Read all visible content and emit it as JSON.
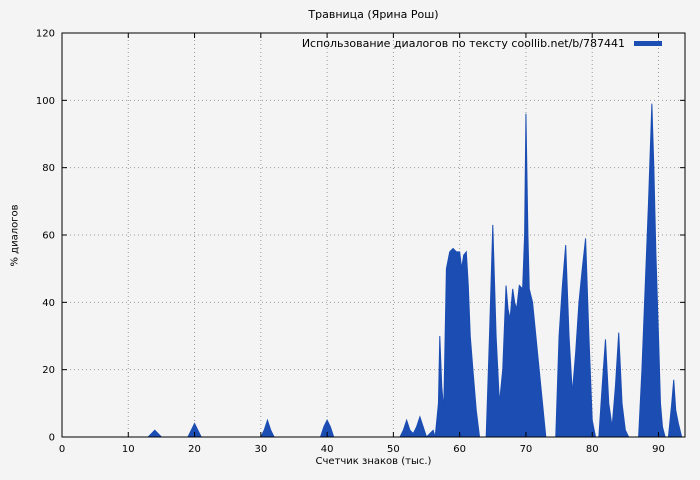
{
  "chart_data": {
    "type": "area",
    "title": "Травница (Ярина Рош)",
    "legend": "Использование диалогов по тексту coollib.net/b/787441",
    "xlabel": "Счетчик знаков (тыс.)",
    "ylabel": "% диалогов",
    "xlim": [
      0,
      94
    ],
    "ylim": [
      0,
      120
    ],
    "x_ticks": [
      0,
      10,
      20,
      30,
      40,
      50,
      60,
      70,
      80,
      90
    ],
    "y_ticks": [
      0,
      20,
      40,
      60,
      80,
      100,
      120
    ],
    "grid": true,
    "legend_position": "top-right",
    "fill_color": "#1b4db3",
    "grid_color": "#9a9a9a",
    "axis_color": "#000000",
    "background": "#f4f4f4",
    "points": [
      [
        0,
        0
      ],
      [
        13,
        0
      ],
      [
        13.5,
        1
      ],
      [
        14,
        2
      ],
      [
        14.5,
        1
      ],
      [
        15,
        0
      ],
      [
        19,
        0
      ],
      [
        19.5,
        2
      ],
      [
        20,
        4
      ],
      [
        20.5,
        2
      ],
      [
        21,
        0
      ],
      [
        30,
        0
      ],
      [
        30.5,
        2
      ],
      [
        31,
        5
      ],
      [
        31.5,
        2
      ],
      [
        32,
        0
      ],
      [
        39,
        0
      ],
      [
        39.5,
        3
      ],
      [
        40,
        5
      ],
      [
        40.5,
        3
      ],
      [
        41,
        0
      ],
      [
        51,
        0
      ],
      [
        51.5,
        2
      ],
      [
        52,
        5
      ],
      [
        52.5,
        2
      ],
      [
        53,
        1
      ],
      [
        53.5,
        3
      ],
      [
        54,
        6
      ],
      [
        54.5,
        3
      ],
      [
        55,
        0
      ],
      [
        55.5,
        1
      ],
      [
        56,
        2
      ],
      [
        56.3,
        0
      ],
      [
        56.8,
        10
      ],
      [
        57,
        30
      ],
      [
        57.3,
        15
      ],
      [
        57.6,
        8
      ],
      [
        58,
        50
      ],
      [
        58.5,
        55
      ],
      [
        59,
        56
      ],
      [
        59.5,
        55
      ],
      [
        60,
        55
      ],
      [
        60.3,
        50
      ],
      [
        60.6,
        54
      ],
      [
        61,
        55
      ],
      [
        61.3,
        45
      ],
      [
        61.6,
        30
      ],
      [
        62,
        20
      ],
      [
        62.5,
        8
      ],
      [
        63,
        0
      ],
      [
        64,
        0
      ],
      [
        64.5,
        30
      ],
      [
        65,
        63
      ],
      [
        65.5,
        30
      ],
      [
        66,
        10
      ],
      [
        66.5,
        20
      ],
      [
        67,
        45
      ],
      [
        67.3,
        38
      ],
      [
        67.6,
        35
      ],
      [
        68,
        44
      ],
      [
        68.3,
        40
      ],
      [
        68.6,
        38
      ],
      [
        69,
        45
      ],
      [
        69.5,
        44
      ],
      [
        69.8,
        60
      ],
      [
        70,
        96
      ],
      [
        70.3,
        60
      ],
      [
        70.5,
        44
      ],
      [
        71,
        40
      ],
      [
        71.5,
        30
      ],
      [
        72,
        20
      ],
      [
        72.5,
        10
      ],
      [
        73,
        0
      ],
      [
        74.5,
        0
      ],
      [
        75,
        30
      ],
      [
        75.5,
        45
      ],
      [
        76,
        57
      ],
      [
        76.5,
        30
      ],
      [
        77,
        13
      ],
      [
        77.5,
        25
      ],
      [
        78,
        40
      ],
      [
        78.5,
        50
      ],
      [
        79,
        59
      ],
      [
        79.5,
        30
      ],
      [
        80,
        5
      ],
      [
        80.5,
        0
      ],
      [
        81,
        0
      ],
      [
        81.5,
        15
      ],
      [
        82,
        29
      ],
      [
        82.5,
        10
      ],
      [
        83,
        3
      ],
      [
        83.5,
        15
      ],
      [
        84,
        31
      ],
      [
        84.5,
        10
      ],
      [
        85,
        2
      ],
      [
        85.5,
        0
      ],
      [
        87,
        0
      ],
      [
        87.5,
        20
      ],
      [
        88,
        45
      ],
      [
        88.5,
        70
      ],
      [
        89,
        99
      ],
      [
        89.3,
        80
      ],
      [
        89.6,
        55
      ],
      [
        90,
        30
      ],
      [
        90.3,
        10
      ],
      [
        90.6,
        3
      ],
      [
        91,
        0
      ],
      [
        91.5,
        0
      ],
      [
        92,
        10
      ],
      [
        92.3,
        17
      ],
      [
        92.6,
        8
      ],
      [
        93,
        4
      ],
      [
        93.5,
        0
      ]
    ]
  }
}
